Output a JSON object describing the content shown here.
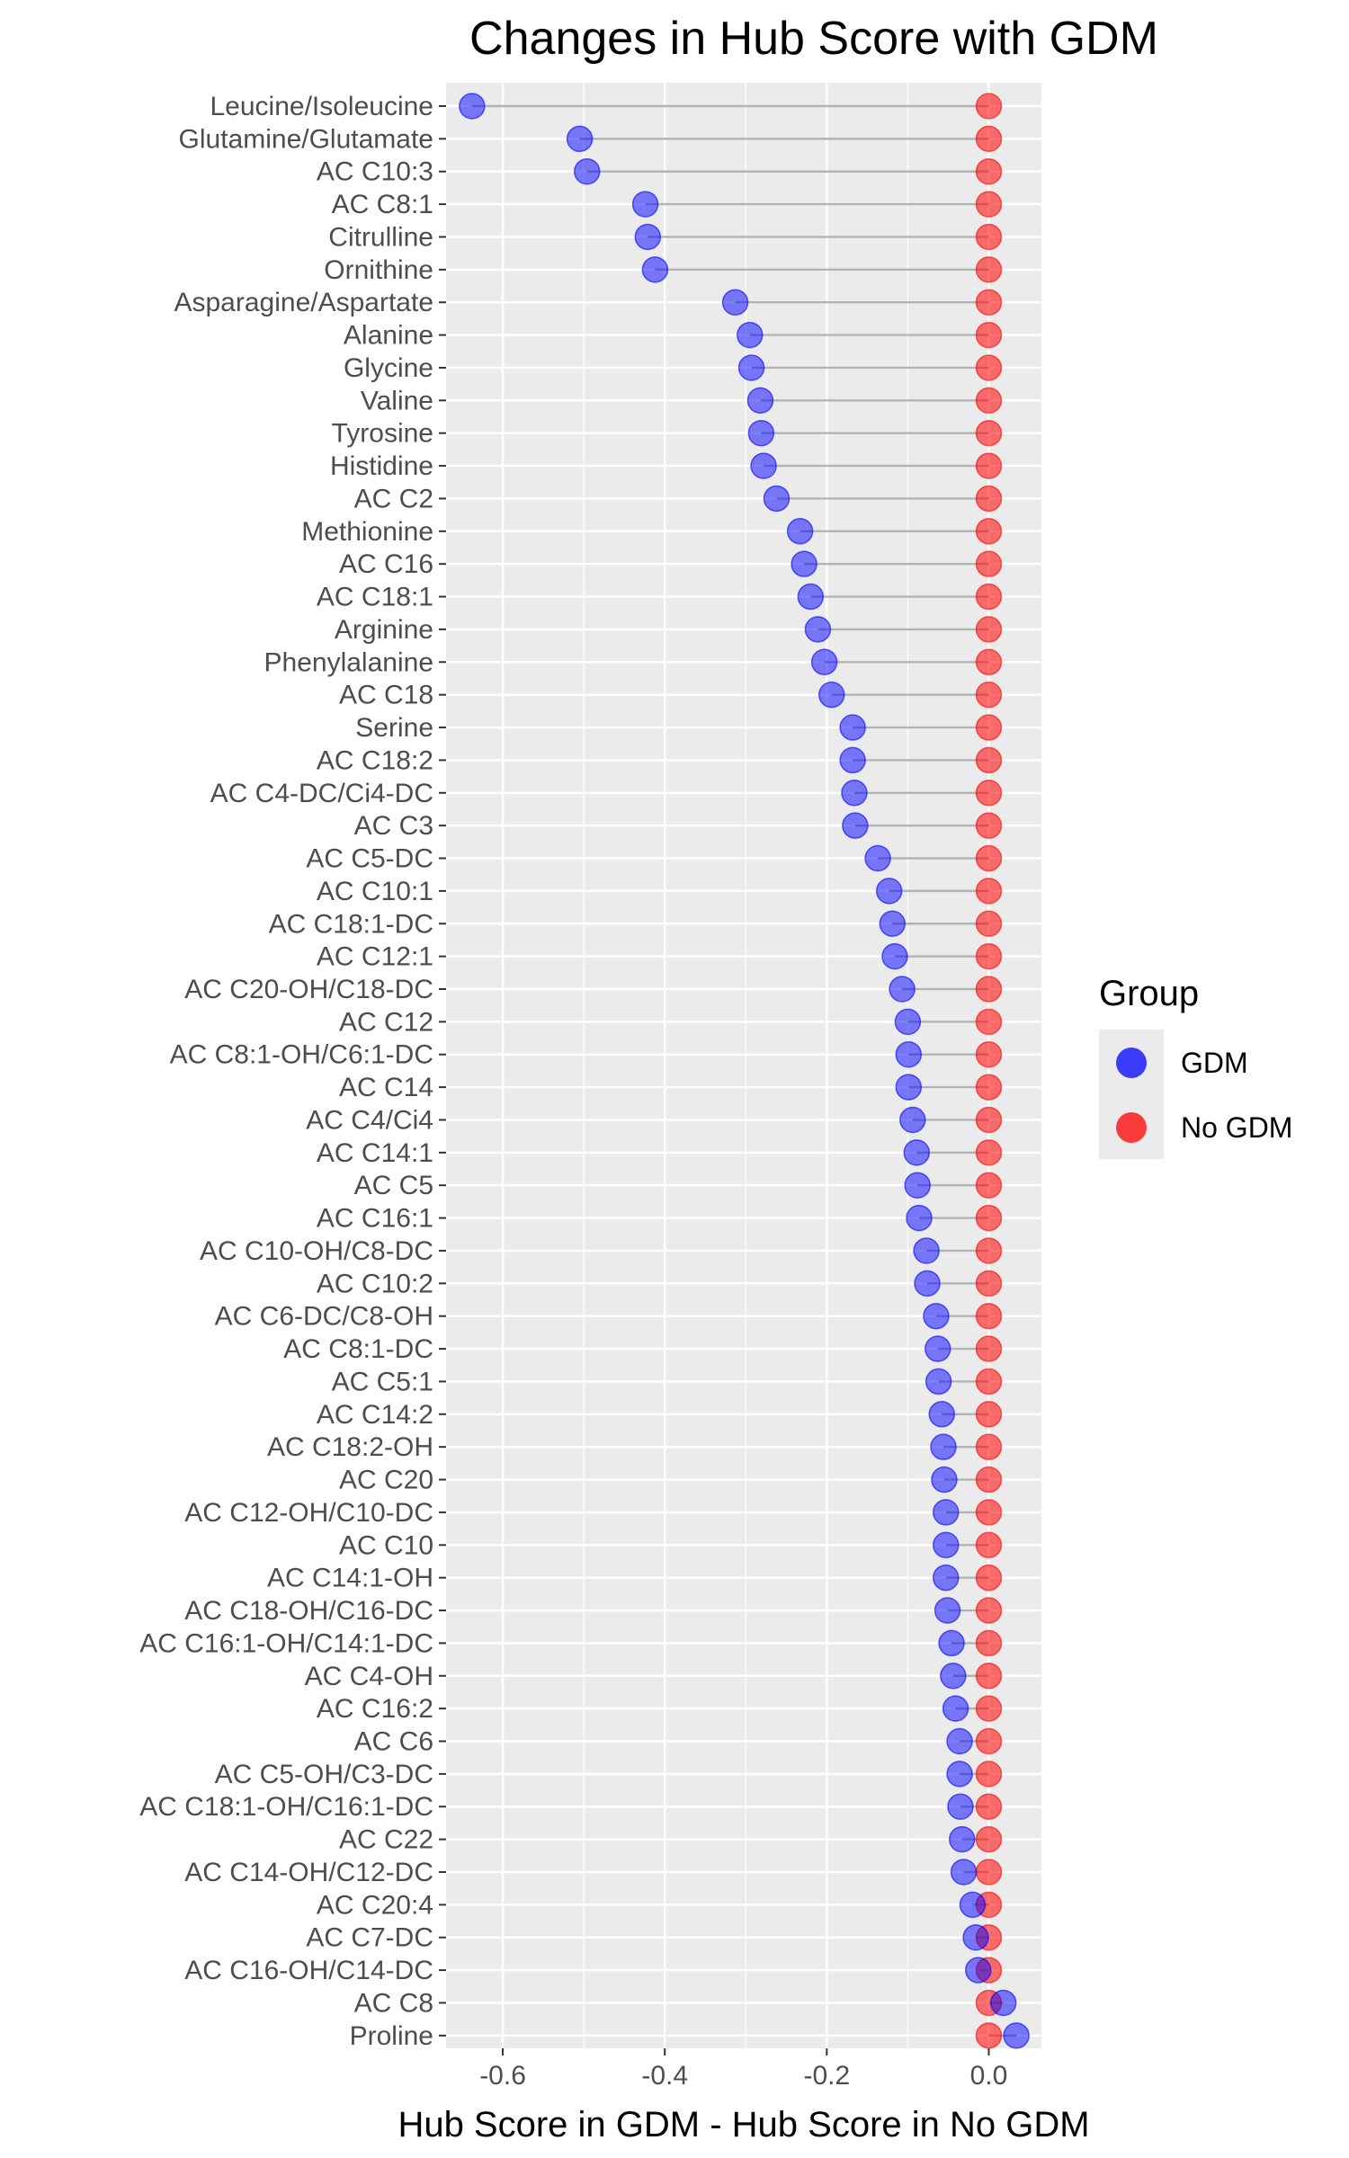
{
  "chart_data": {
    "type": "dumbbell",
    "title": "Changes in Hub Score with GDM",
    "xlabel": "Hub Score in GDM - Hub Score in No GDM",
    "ylabel": "",
    "xlim": [
      -0.67,
      0.065
    ],
    "x_ticks": [
      -0.6,
      -0.4,
      -0.2,
      0.0
    ],
    "x_tick_labels": [
      "-0.6",
      "-0.4",
      "-0.2",
      "0.0"
    ],
    "grid": true,
    "legend": {
      "title": "Group",
      "placement": "right",
      "entries": [
        {
          "label": "GDM",
          "color": "#0000ff"
        },
        {
          "label": "No GDM",
          "color": "#ff0000"
        }
      ]
    },
    "colors": {
      "gdm": "#0000ff",
      "no_gdm": "#ff0000",
      "segment": "#b3b3b3",
      "panel": "#ebebeb",
      "grid": "#ffffff"
    },
    "categories": [
      "Leucine/Isoleucine",
      "Glutamine/Glutamate",
      "AC C10:3",
      "AC C8:1",
      "Citrulline",
      "Ornithine",
      "Asparagine/Aspartate",
      "Alanine",
      "Glycine",
      "Valine",
      "Tyrosine",
      "Histidine",
      "AC C2",
      "Methionine",
      "AC C16",
      "AC C18:1",
      "Arginine",
      "Phenylalanine",
      "AC C18",
      "Serine",
      "AC C18:2",
      "AC C4-DC/Ci4-DC",
      "AC C3",
      "AC C5-DC",
      "AC C10:1",
      "AC C18:1-DC",
      "AC C12:1",
      "AC C20-OH/C18-DC",
      "AC C12",
      "AC C8:1-OH/C6:1-DC",
      "AC C14",
      "AC C4/Ci4",
      "AC C14:1",
      "AC C5",
      "AC C16:1",
      "AC C10-OH/C8-DC",
      "AC C10:2",
      "AC C6-DC/C8-OH",
      "AC C8:1-DC",
      "AC C5:1",
      "AC C14:2",
      "AC C18:2-OH",
      "AC C20",
      "AC C12-OH/C10-DC",
      "AC C10",
      "AC C14:1-OH",
      "AC C18-OH/C16-DC",
      "AC C16:1-OH/C14:1-DC",
      "AC C4-OH",
      "AC C16:2",
      "AC C6",
      "AC C5-OH/C3-DC",
      "AC C18:1-OH/C16:1-DC",
      "AC C22",
      "AC C14-OH/C12-DC",
      "AC C20:4",
      "AC C7-DC",
      "AC C16-OH/C14-DC",
      "AC C8",
      "Proline"
    ],
    "series": [
      {
        "name": "GDM",
        "values": [
          -0.638,
          -0.505,
          -0.496,
          -0.424,
          -0.421,
          -0.412,
          -0.313,
          -0.295,
          -0.293,
          -0.282,
          -0.281,
          -0.278,
          -0.262,
          -0.233,
          -0.228,
          -0.22,
          -0.211,
          -0.203,
          -0.194,
          -0.168,
          -0.168,
          -0.166,
          -0.165,
          -0.137,
          -0.123,
          -0.119,
          -0.116,
          -0.107,
          -0.1,
          -0.099,
          -0.099,
          -0.094,
          -0.089,
          -0.088,
          -0.086,
          -0.077,
          -0.076,
          -0.065,
          -0.063,
          -0.062,
          -0.058,
          -0.056,
          -0.055,
          -0.053,
          -0.053,
          -0.053,
          -0.051,
          -0.046,
          -0.044,
          -0.041,
          -0.036,
          -0.036,
          -0.035,
          -0.033,
          -0.031,
          -0.02,
          -0.016,
          -0.013,
          0.018,
          0.034
        ]
      },
      {
        "name": "No GDM",
        "values": [
          0,
          0,
          0,
          0,
          0,
          0,
          0,
          0,
          0,
          0,
          0,
          0,
          0,
          0,
          0,
          0,
          0,
          0,
          0,
          0,
          0,
          0,
          0,
          0,
          0,
          0,
          0,
          0,
          0,
          0,
          0,
          0,
          0,
          0,
          0,
          0,
          0,
          0,
          0,
          0,
          0,
          0,
          0,
          0,
          0,
          0,
          0,
          0,
          0,
          0,
          0,
          0,
          0,
          0,
          0,
          0,
          0,
          0,
          0,
          0
        ]
      }
    ]
  }
}
